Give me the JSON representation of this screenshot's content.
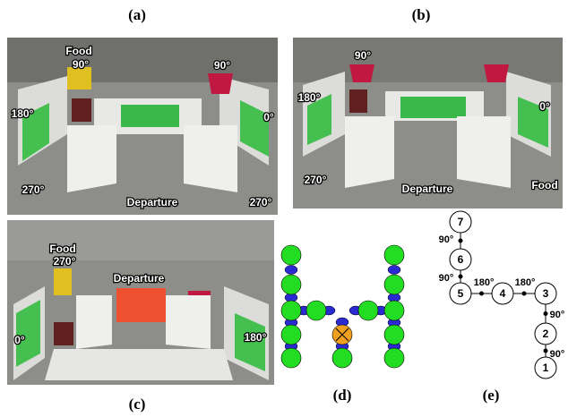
{
  "panels": {
    "a": {
      "label": "(a)",
      "annotations": [
        "Food",
        "90°",
        "90°",
        "180°",
        "0°",
        "270°",
        "Departure",
        "270°"
      ]
    },
    "b": {
      "label": "(b)",
      "annotations": [
        "90°",
        "180°",
        "0°",
        "270°",
        "Departure",
        "Food"
      ]
    },
    "c": {
      "label": "(c)",
      "annotations": [
        "Food",
        "270°",
        "Departure",
        "0°",
        "180°"
      ]
    },
    "d": {
      "label": "(d)"
    },
    "e": {
      "label": "(e)"
    }
  },
  "graph": {
    "nodes": [
      "7",
      "6",
      "5",
      "4",
      "3",
      "2",
      "1"
    ],
    "edges": [
      "90°",
      "90°",
      "180°",
      "180°",
      "90°",
      "90°"
    ]
  }
}
